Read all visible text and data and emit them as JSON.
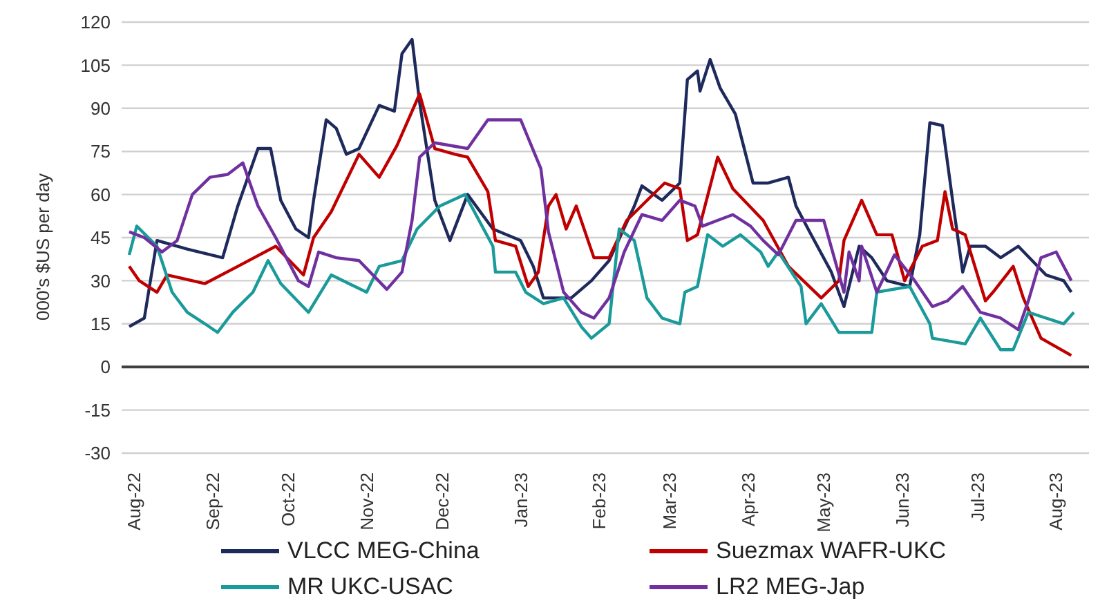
{
  "chart_data": {
    "type": "line",
    "ylabel": "000's $US per day",
    "xlim": [
      "2022-07-27",
      "2023-08-14"
    ],
    "xticks": [
      {
        "value": "2022-08-01",
        "label": "Aug-22"
      },
      {
        "value": "2022-09-01",
        "label": "Sep-22"
      },
      {
        "value": "2022-10-01",
        "label": "Oct-22"
      },
      {
        "value": "2022-11-01",
        "label": "Nov-22"
      },
      {
        "value": "2022-12-01",
        "label": "Dec-22"
      },
      {
        "value": "2023-01-01",
        "label": "Jan-23"
      },
      {
        "value": "2023-02-01",
        "label": "Feb-23"
      },
      {
        "value": "2023-03-01",
        "label": "Mar-23"
      },
      {
        "value": "2023-04-01",
        "label": "Apr-23"
      },
      {
        "value": "2023-05-01",
        "label": "May-23"
      },
      {
        "value": "2023-06-01",
        "label": "Jun-23"
      },
      {
        "value": "2023-07-01",
        "label": "Jul-23"
      },
      {
        "value": "2023-08-01",
        "label": "Aug-23"
      }
    ],
    "ylim": [
      -30,
      120
    ],
    "yticks": [
      -30,
      -15,
      0,
      15,
      30,
      45,
      60,
      75,
      90,
      105,
      120
    ],
    "grid": "y",
    "legend": "bottom",
    "marker": "none",
    "line_style": "solid",
    "ref_lines": [
      {
        "axis": "y",
        "value": 0,
        "color": "#404040"
      }
    ],
    "series": [
      {
        "name": "VLCC MEG-China",
        "color": "#1f2a5c",
        "x": [
          "2022-07-30",
          "2022-08-05",
          "2022-08-10",
          "2022-08-22",
          "2022-09-05",
          "2022-09-11",
          "2022-09-19",
          "2022-09-24",
          "2022-09-28",
          "2022-10-04",
          "2022-10-09",
          "2022-10-11",
          "2022-10-16",
          "2022-10-20",
          "2022-10-24",
          "2022-10-29",
          "2022-11-06",
          "2022-11-12",
          "2022-11-15",
          "2022-11-19",
          "2022-11-22",
          "2022-11-28",
          "2022-12-04",
          "2022-12-11",
          "2022-12-21",
          "2023-01-01",
          "2023-01-06",
          "2023-01-10",
          "2023-01-21",
          "2023-01-29",
          "2023-02-05",
          "2023-02-15",
          "2023-02-18",
          "2023-02-26",
          "2023-03-05",
          "2023-03-08",
          "2023-03-12",
          "2023-03-13",
          "2023-03-17",
          "2023-03-21",
          "2023-03-27",
          "2023-04-03",
          "2023-04-09",
          "2023-04-17",
          "2023-04-20",
          "2023-04-26",
          "2023-05-04",
          "2023-05-09",
          "2023-05-15",
          "2023-05-20",
          "2023-05-26",
          "2023-06-04",
          "2023-06-08",
          "2023-06-12",
          "2023-06-17",
          "2023-06-21",
          "2023-06-25",
          "2023-06-28",
          "2023-07-04",
          "2023-07-10",
          "2023-07-17",
          "2023-07-28",
          "2023-08-04",
          "2023-08-07"
        ],
        "values": [
          14,
          17,
          44,
          41,
          38,
          56,
          76,
          76,
          58,
          48,
          45,
          58,
          86,
          83,
          74,
          76,
          91,
          89,
          109,
          114,
          92,
          58,
          44,
          60,
          48,
          44,
          35,
          24,
          24,
          30,
          37,
          56,
          63,
          58,
          64,
          100,
          103,
          96,
          107,
          97,
          88,
          64,
          64,
          66,
          56,
          46,
          33,
          21,
          42,
          38,
          30,
          28,
          46,
          85,
          84,
          58,
          33,
          42,
          42,
          38,
          42,
          32,
          30,
          26
        ]
      },
      {
        "name": "Suezmax WAFR-UKC",
        "color": "#c00000",
        "x": [
          "2022-07-30",
          "2022-08-03",
          "2022-08-10",
          "2022-08-14",
          "2022-08-29",
          "2022-09-11",
          "2022-09-26",
          "2022-10-07",
          "2022-10-11",
          "2022-10-18",
          "2022-10-29",
          "2022-11-06",
          "2022-11-13",
          "2022-11-22",
          "2022-11-28",
          "2022-12-06",
          "2022-12-11",
          "2022-12-19",
          "2022-12-22",
          "2022-12-30",
          "2023-01-04",
          "2023-01-08",
          "2023-01-12",
          "2023-01-15",
          "2023-01-19",
          "2023-01-23",
          "2023-01-30",
          "2023-02-05",
          "2023-02-12",
          "2023-02-27",
          "2023-03-05",
          "2023-03-08",
          "2023-03-12",
          "2023-03-20",
          "2023-03-26",
          "2023-04-07",
          "2023-04-17",
          "2023-04-30",
          "2023-05-07",
          "2023-05-09",
          "2023-05-16",
          "2023-05-22",
          "2023-05-28",
          "2023-06-02",
          "2023-06-09",
          "2023-06-15",
          "2023-06-18",
          "2023-06-21",
          "2023-06-26",
          "2023-07-04",
          "2023-07-07",
          "2023-07-15",
          "2023-07-19",
          "2023-07-26",
          "2023-08-01",
          "2023-08-07"
        ],
        "values": [
          35,
          30,
          26,
          32,
          29,
          35,
          42,
          32,
          45,
          54,
          74,
          66,
          77,
          95,
          76,
          74,
          73,
          61,
          44,
          42,
          28,
          33,
          56,
          60,
          48,
          56,
          38,
          38,
          51,
          64,
          62,
          44,
          46,
          73,
          62,
          51,
          35,
          24,
          30,
          44,
          58,
          46,
          46,
          30,
          42,
          44,
          61,
          48,
          46,
          23,
          26,
          35,
          24,
          10,
          7,
          4
        ]
      },
      {
        "name": "MR UKC-USAC",
        "color": "#1a9a9a",
        "x": [
          "2022-07-30",
          "2022-08-02",
          "2022-08-10",
          "2022-08-16",
          "2022-08-22",
          "2022-08-29",
          "2022-09-03",
          "2022-09-09",
          "2022-09-17",
          "2022-09-23",
          "2022-09-28",
          "2022-10-09",
          "2022-10-18",
          "2022-11-01",
          "2022-11-06",
          "2022-11-15",
          "2022-11-21",
          "2022-11-30",
          "2022-12-10",
          "2022-12-21",
          "2022-12-22",
          "2022-12-30",
          "2023-01-03",
          "2023-01-10",
          "2023-01-18",
          "2023-01-25",
          "2023-01-29",
          "2023-02-05",
          "2023-02-09",
          "2023-02-15",
          "2023-02-20",
          "2023-02-26",
          "2023-03-05",
          "2023-03-07",
          "2023-03-12",
          "2023-03-16",
          "2023-03-22",
          "2023-03-29",
          "2023-04-06",
          "2023-04-09",
          "2023-04-13",
          "2023-04-22",
          "2023-04-24",
          "2023-04-30",
          "2023-05-07",
          "2023-05-20",
          "2023-05-22",
          "2023-06-04",
          "2023-06-12",
          "2023-06-13",
          "2023-06-26",
          "2023-07-02",
          "2023-07-10",
          "2023-07-15",
          "2023-07-21",
          "2023-07-28",
          "2023-08-04",
          "2023-08-08"
        ],
        "values": [
          39,
          49,
          42,
          26,
          19,
          15,
          12,
          19,
          26,
          37,
          29,
          19,
          32,
          26,
          35,
          37,
          48,
          56,
          60,
          42,
          33,
          33,
          26,
          22,
          24,
          14,
          10,
          15,
          48,
          44,
          24,
          17,
          15,
          26,
          28,
          46,
          42,
          46,
          40,
          35,
          40,
          28,
          15,
          22,
          12,
          12,
          26,
          28,
          15,
          10,
          8,
          17,
          6,
          6,
          19,
          17,
          15,
          19
        ]
      },
      {
        "name": "LR2 MEG-Jap",
        "color": "#7030a0",
        "x": [
          "2022-07-30",
          "2022-08-05",
          "2022-08-12",
          "2022-08-18",
          "2022-08-24",
          "2022-08-31",
          "2022-09-07",
          "2022-09-13",
          "2022-09-19",
          "2022-09-26",
          "2022-10-05",
          "2022-10-09",
          "2022-10-13",
          "2022-10-20",
          "2022-10-29",
          "2022-11-09",
          "2022-11-15",
          "2022-11-19",
          "2022-11-22",
          "2022-11-28",
          "2022-12-11",
          "2022-12-19",
          "2023-01-01",
          "2023-01-09",
          "2023-01-12",
          "2023-01-18",
          "2023-01-25",
          "2023-01-30",
          "2023-02-05",
          "2023-02-11",
          "2023-02-18",
          "2023-02-26",
          "2023-03-05",
          "2023-03-11",
          "2023-03-14",
          "2023-03-20",
          "2023-03-26",
          "2023-04-02",
          "2023-04-07",
          "2023-04-13",
          "2023-04-20",
          "2023-05-01",
          "2023-05-09",
          "2023-05-11",
          "2023-05-15",
          "2023-05-16",
          "2023-05-22",
          "2023-05-29",
          "2023-06-06",
          "2023-06-13",
          "2023-06-19",
          "2023-06-25",
          "2023-07-02",
          "2023-07-10",
          "2023-07-17",
          "2023-07-21",
          "2023-07-26",
          "2023-08-01",
          "2023-08-07"
        ],
        "values": [
          47,
          45,
          40,
          44,
          60,
          66,
          67,
          71,
          56,
          45,
          30,
          28,
          40,
          38,
          37,
          27,
          33,
          51,
          73,
          78,
          76,
          86,
          86,
          69,
          47,
          26,
          19,
          17,
          24,
          40,
          53,
          51,
          58,
          56,
          49,
          51,
          53,
          49,
          44,
          39,
          51,
          51,
          26,
          40,
          30,
          42,
          26,
          39,
          30,
          21,
          23,
          28,
          19,
          17,
          13,
          23,
          38,
          40,
          30
        ]
      }
    ]
  }
}
